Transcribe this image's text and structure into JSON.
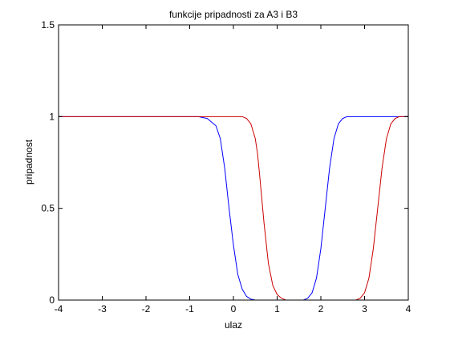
{
  "chart_data": {
    "type": "line",
    "title": "funkcije pripadnosti za A3 i B3",
    "xlabel": "ulaz",
    "ylabel": "pripadnost",
    "xlim": [
      -4,
      4
    ],
    "ylim": [
      0,
      1.5
    ],
    "xticks": [
      "-4",
      "-3",
      "-2",
      "-1",
      "0",
      "1",
      "2",
      "3",
      "4"
    ],
    "yticks": [
      "0",
      "0.5",
      "1",
      "1.5"
    ],
    "grid": false,
    "legend": "none",
    "series": [
      {
        "color": "#0000ff",
        "x": [
          -4,
          -0.8,
          -0.6,
          -0.4,
          -0.3,
          -0.2,
          -0.1,
          0,
          0.1,
          0.2,
          0.3,
          0.4,
          0.5,
          0.6,
          0.8,
          1.6,
          1.7,
          1.8,
          1.9,
          2.0,
          2.1,
          2.2,
          2.3,
          2.4,
          2.5,
          2.6,
          2.8,
          4
        ],
        "y": [
          1,
          1,
          0.99,
          0.95,
          0.88,
          0.72,
          0.5,
          0.3,
          0.14,
          0.06,
          0.02,
          0.005,
          0,
          0,
          0,
          0,
          0.01,
          0.04,
          0.12,
          0.28,
          0.5,
          0.72,
          0.88,
          0.96,
          0.99,
          1,
          1,
          1
        ]
      },
      {
        "color": "#cc0000",
        "x": [
          -4,
          0.2,
          0.3,
          0.4,
          0.5,
          0.55,
          0.6,
          0.7,
          0.8,
          0.9,
          1.0,
          1.1,
          1.2,
          1.4,
          2.8,
          2.9,
          3.0,
          3.1,
          3.2,
          3.3,
          3.4,
          3.5,
          3.6,
          3.7,
          3.8,
          3.9,
          4
        ],
        "y": [
          1,
          1,
          0.99,
          0.96,
          0.88,
          0.8,
          0.68,
          0.42,
          0.2,
          0.08,
          0.03,
          0.01,
          0,
          0,
          0,
          0.01,
          0.04,
          0.12,
          0.28,
          0.5,
          0.72,
          0.88,
          0.96,
          0.99,
          1,
          1,
          1
        ]
      }
    ]
  }
}
